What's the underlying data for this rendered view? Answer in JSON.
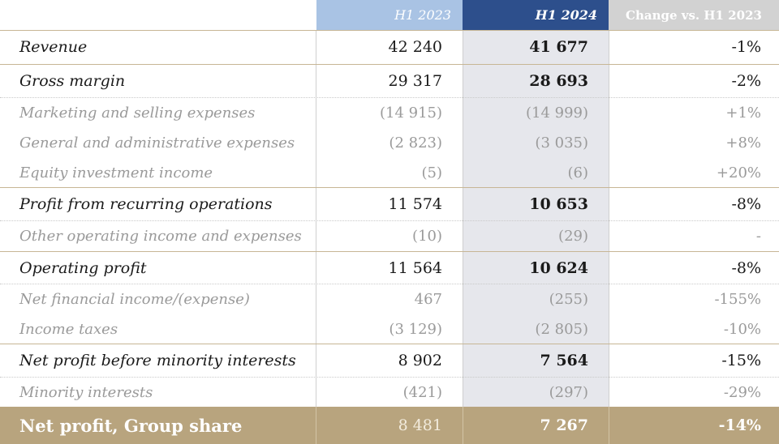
{
  "headers": {
    "h1_2023": "H1 2023",
    "h1_2024": "H1 2024",
    "change": "Change vs. H1 2023"
  },
  "rows": [
    {
      "label": "Revenue",
      "h1_2023": "42 240",
      "h1_2024": "41 677",
      "change": "-1%"
    },
    {
      "label": "Gross margin",
      "h1_2023": "29 317",
      "h1_2024": "28 693",
      "change": "-2%"
    },
    {
      "label": "Marketing and selling expenses",
      "h1_2023": "(14 915)",
      "h1_2024": "(14 999)",
      "change": "+1%"
    },
    {
      "label": "General and administrative expenses",
      "h1_2023": "(2 823)",
      "h1_2024": "(3 035)",
      "change": "+8%"
    },
    {
      "label": "Equity investment income",
      "h1_2023": "(5)",
      "h1_2024": "(6)",
      "change": "+20%"
    },
    {
      "label": "Profit from recurring operations",
      "h1_2023": "11 574",
      "h1_2024": "10 653",
      "change": "-8%"
    },
    {
      "label": "Other operating income and expenses",
      "h1_2023": "(10)",
      "h1_2024": "(29)",
      "change": "-"
    },
    {
      "label": "Operating profit",
      "h1_2023": "11 564",
      "h1_2024": "10 624",
      "change": "-8%"
    },
    {
      "label": "Net financial income/(expense)",
      "h1_2023": "467",
      "h1_2024": "(255)",
      "change": "-155%"
    },
    {
      "label": "Income taxes",
      "h1_2023": "(3 129)",
      "h1_2024": "(2 805)",
      "change": "-10%"
    },
    {
      "label": "Net profit before minority interests",
      "h1_2023": "8 902",
      "h1_2024": "7 564",
      "change": "-15%"
    },
    {
      "label": "Minority interests",
      "h1_2023": "(421)",
      "h1_2024": "(297)",
      "change": "-29%"
    }
  ],
  "footer": {
    "label": "Net profit, Group share",
    "h1_2023": "8 481",
    "h1_2024": "7 267",
    "change": "-14%"
  },
  "colors": {
    "header_2023": "#a9c3e4",
    "header_2024": "#2d4f8c",
    "header_change": "#d2d2d2",
    "footer": "#b8a47e",
    "highlight_column": "#e6e7ec"
  }
}
